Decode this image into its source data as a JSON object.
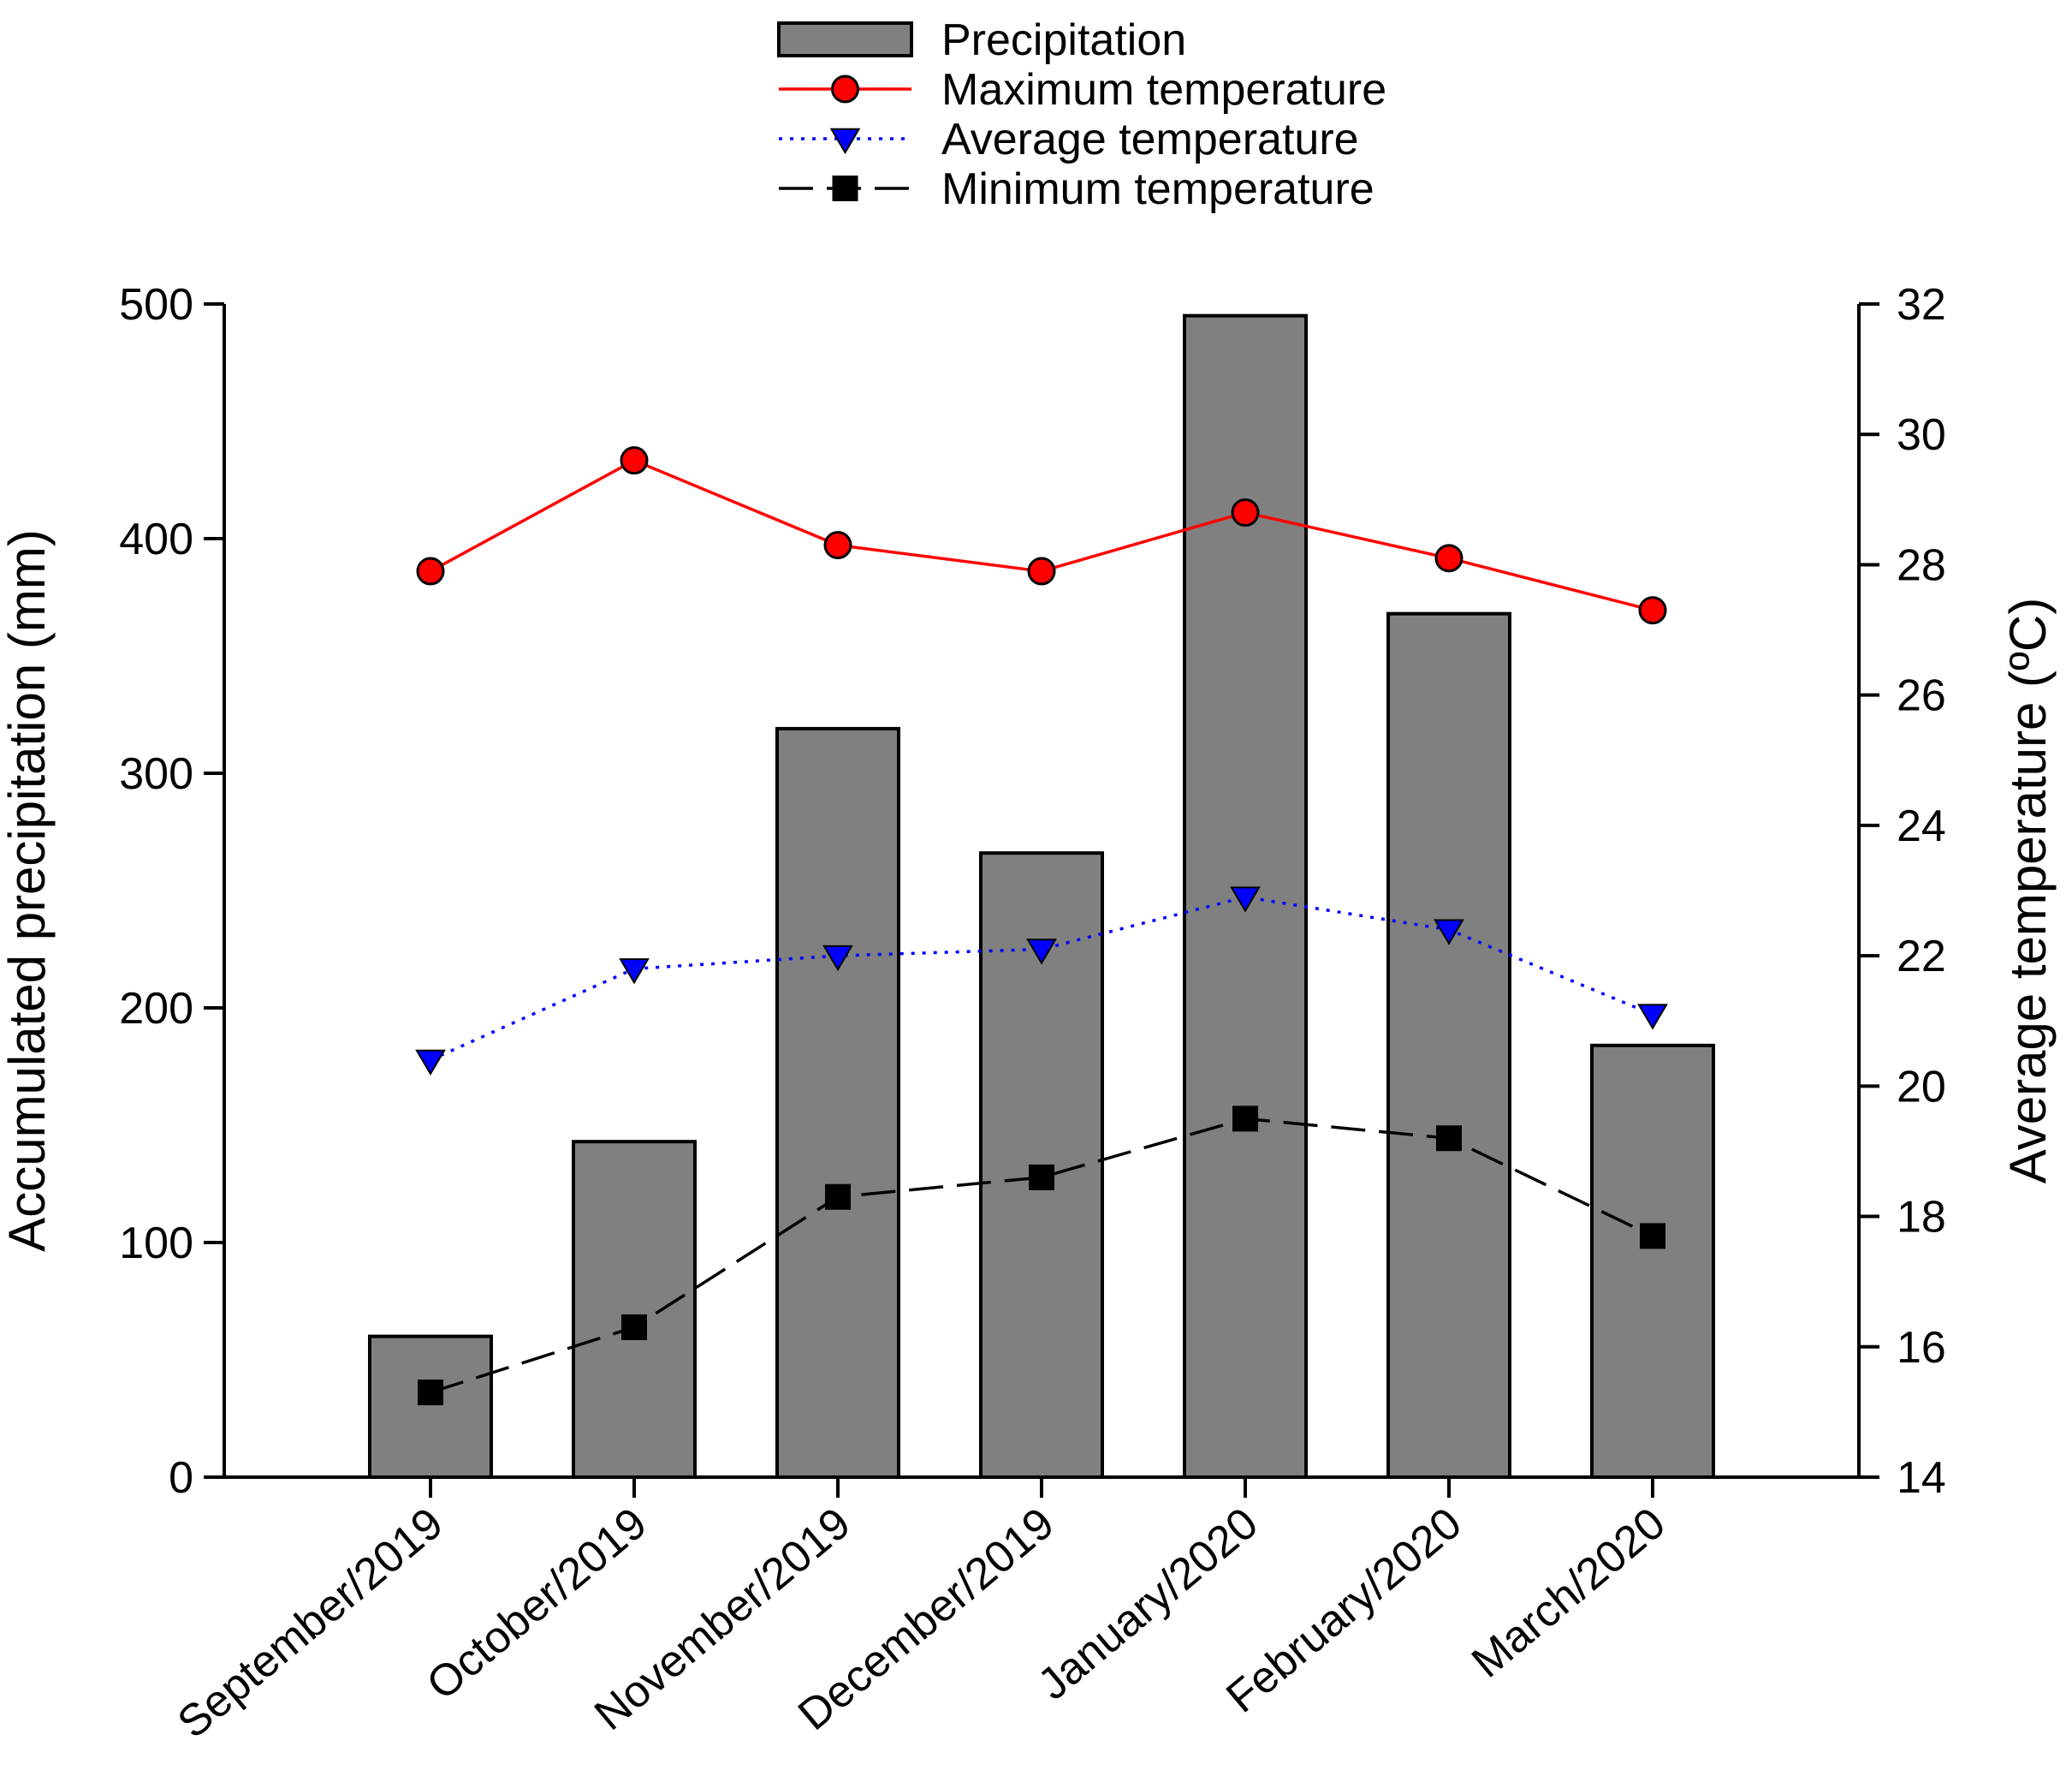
{
  "chart_data": {
    "type": "bar",
    "categories": [
      "September/2019",
      "October/2019",
      "November/2019",
      "December/2019",
      "January/2020",
      "February/2020",
      "March/2020"
    ],
    "ylabel": "Accumulated precipitation (mm)",
    "y2label": "Average temperature (ºC)",
    "ylim": [
      0,
      500
    ],
    "y2lim": [
      14,
      32
    ],
    "yticks": [
      "0",
      "100",
      "200",
      "300",
      "400",
      "500"
    ],
    "y2ticks": [
      "14",
      "16",
      "18",
      "20",
      "22",
      "24",
      "26",
      "28",
      "30",
      "32"
    ],
    "legend_position": "top-center",
    "series": [
      {
        "name": "Precipitation",
        "kind": "bar",
        "axis": "left",
        "color": "#808080",
        "values": [
          60,
          143,
          319,
          266,
          495,
          368,
          184
        ]
      },
      {
        "name": "Maximum temperature",
        "kind": "line",
        "axis": "right",
        "color": "#ff0000",
        "marker": "circle",
        "line_style": "solid",
        "values": [
          27.9,
          29.6,
          28.3,
          27.9,
          28.8,
          28.1,
          27.3
        ]
      },
      {
        "name": "Average temperature",
        "kind": "line",
        "axis": "right",
        "color": "#0000ff",
        "marker": "triangle-down",
        "line_style": "dotted",
        "values": [
          20.4,
          21.8,
          22.0,
          22.1,
          22.9,
          22.4,
          21.1
        ]
      },
      {
        "name": "Minimum temperature",
        "kind": "line",
        "axis": "right",
        "color": "#000000",
        "marker": "square",
        "line_style": "dashed",
        "values": [
          15.3,
          16.3,
          18.3,
          18.6,
          19.5,
          19.2,
          17.7
        ]
      }
    ]
  }
}
